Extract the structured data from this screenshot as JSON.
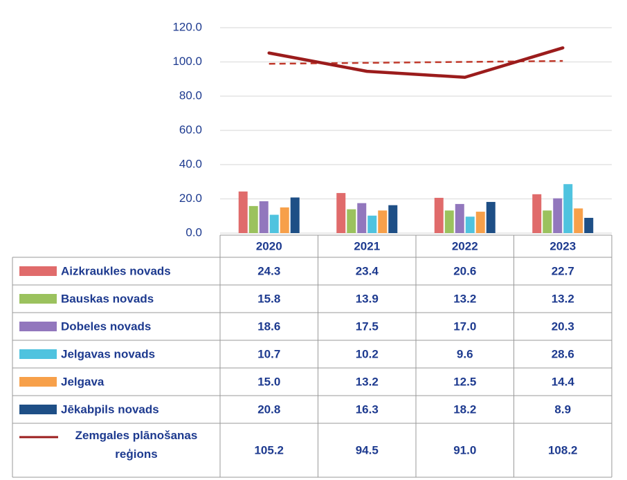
{
  "chart_data": {
    "type": "bar",
    "categories": [
      "2020",
      "2021",
      "2022",
      "2023"
    ],
    "ylim": [
      0,
      120
    ],
    "yticks": [
      {
        "value": 0,
        "label": "0.0"
      },
      {
        "value": 20,
        "label": "20.0"
      },
      {
        "value": 40,
        "label": "40.0"
      },
      {
        "value": 60,
        "label": "60.0"
      },
      {
        "value": 80,
        "label": "80.0"
      },
      {
        "value": 100,
        "label": "100.0"
      },
      {
        "value": 120,
        "label": "120.0"
      }
    ],
    "grid": true,
    "data_table": true,
    "series": [
      {
        "name": "Aizkraukles novads",
        "color": "#e06b6b",
        "values": [
          24.3,
          23.4,
          20.6,
          22.7
        ],
        "value_labels": [
          "24.3",
          "23.4",
          "20.6",
          "22.7"
        ]
      },
      {
        "name": "Bauskas novads",
        "color": "#9bc25e",
        "values": [
          15.8,
          13.9,
          13.2,
          13.2
        ],
        "value_labels": [
          "15.8",
          "13.9",
          "13.2",
          "13.2"
        ]
      },
      {
        "name": "Dobeles novads",
        "color": "#9277bd",
        "values": [
          18.6,
          17.5,
          17.0,
          20.3
        ],
        "value_labels": [
          "18.6",
          "17.5",
          "17.0",
          "20.3"
        ]
      },
      {
        "name": "Jelgavas novads",
        "color": "#4fc3df",
        "values": [
          10.7,
          10.2,
          9.6,
          28.6
        ],
        "value_labels": [
          "10.7",
          "10.2",
          "9.6",
          "28.6"
        ]
      },
      {
        "name": "Jelgava",
        "color": "#f7a04a",
        "values": [
          15.0,
          13.2,
          12.5,
          14.4
        ],
        "value_labels": [
          "15.0",
          "13.2",
          "12.5",
          "14.4"
        ]
      },
      {
        "name": "Jēkabpils novads",
        "color": "#1e4f86",
        "values": [
          20.8,
          16.3,
          18.2,
          8.9
        ],
        "value_labels": [
          "20.8",
          "16.3",
          "18.2",
          "8.9"
        ]
      },
      {
        "name": "Zemgales plānošanas reģions",
        "type": "line",
        "color": "#9b1c1c",
        "values": [
          105.2,
          94.5,
          91.0,
          108.2
        ],
        "value_labels": [
          "105.2",
          "94.5",
          "91.0",
          "108.2"
        ],
        "trendline": {
          "color": "#c0392b",
          "dashed": true
        }
      }
    ]
  }
}
